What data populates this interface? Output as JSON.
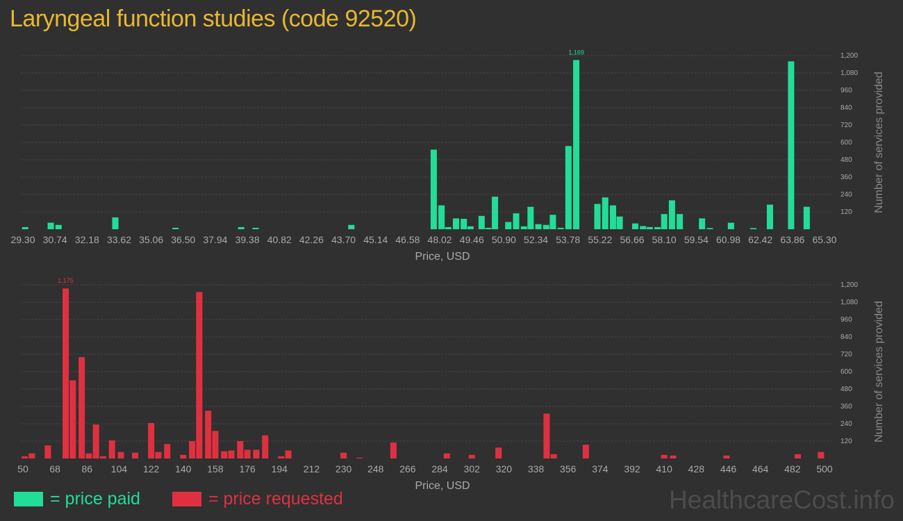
{
  "title": "Laryngeal function studies (code 92520)",
  "colors": {
    "paid": "#22dd99",
    "requested": "#e03040",
    "title": "#e8b730"
  },
  "legend": {
    "paid": "= price paid",
    "requested": "= price requested"
  },
  "watermark": "HealthcareCost.info",
  "chart_data": [
    {
      "type": "bar",
      "name": "price paid",
      "color": "#22dd99",
      "xlabel": "Price, USD",
      "ylabel": "Number of services provided",
      "xlim": [
        29.3,
        65.3
      ],
      "ylim": [
        0,
        1260
      ],
      "x_ticks": [
        "29.30",
        "30.74",
        "32.18",
        "33.62",
        "35.06",
        "36.50",
        "37.94",
        "39.38",
        "40.82",
        "42.26",
        "43.70",
        "45.14",
        "46.58",
        "48.02",
        "49.46",
        "50.90",
        "52.34",
        "53.78",
        "55.22",
        "56.66",
        "58.10",
        "59.54",
        "60.98",
        "62.42",
        "63.86",
        "65.30"
      ],
      "y_ticks": [
        {
          "value": 120,
          "label": "120"
        },
        {
          "value": 240,
          "label": "240"
        },
        {
          "value": 360,
          "label": "360"
        },
        {
          "value": 480,
          "label": "480"
        },
        {
          "value": 600,
          "label": "600"
        },
        {
          "value": 720,
          "label": "720"
        },
        {
          "value": 840,
          "label": "840"
        },
        {
          "value": 960,
          "label": "960"
        },
        {
          "value": 1080,
          "label": "1,080"
        },
        {
          "value": 1200,
          "label": "1,200"
        }
      ],
      "peak_label": "1,169",
      "x": [
        29.4,
        30.55,
        30.9,
        33.45,
        36.15,
        39.1,
        39.75,
        44.05,
        47.75,
        48.1,
        48.4,
        48.75,
        49.1,
        49.4,
        49.9,
        50.2,
        50.5,
        51.1,
        51.45,
        51.8,
        52.1,
        52.45,
        52.8,
        53.1,
        53.45,
        53.8,
        54.15,
        55.1,
        55.45,
        55.8,
        56.1,
        56.8,
        57.15,
        57.45,
        57.8,
        58.1,
        58.45,
        58.8,
        59.8,
        60.15,
        61.1,
        62.1,
        62.85,
        63.8,
        64.5,
        65.15
      ],
      "y": [
        15,
        45,
        30,
        82,
        10,
        15,
        10,
        30,
        550,
        165,
        15,
        75,
        72,
        20,
        92,
        10,
        225,
        50,
        110,
        20,
        155,
        35,
        30,
        100,
        10,
        575,
        1169,
        175,
        220,
        165,
        88,
        40,
        22,
        15,
        15,
        105,
        200,
        105,
        75,
        8,
        45,
        8,
        170,
        1160,
        155,
        0
      ]
    },
    {
      "type": "bar",
      "name": "price requested",
      "color": "#e03040",
      "xlabel": "Price, USD",
      "ylabel": "Number of services provided",
      "xlim": [
        50,
        500
      ],
      "ylim": [
        0,
        1260
      ],
      "x_ticks": [
        "50",
        "68",
        "86",
        "104",
        "122",
        "140",
        "158",
        "176",
        "194",
        "212",
        "230",
        "248",
        "266",
        "284",
        "302",
        "320",
        "338",
        "356",
        "374",
        "392",
        "410",
        "428",
        "446",
        "464",
        "482",
        "500"
      ],
      "y_ticks": [
        {
          "value": 120,
          "label": "120"
        },
        {
          "value": 240,
          "label": "240"
        },
        {
          "value": 360,
          "label": "360"
        },
        {
          "value": 480,
          "label": "480"
        },
        {
          "value": 600,
          "label": "600"
        },
        {
          "value": 720,
          "label": "720"
        },
        {
          "value": 840,
          "label": "840"
        },
        {
          "value": 960,
          "label": "960"
        },
        {
          "value": 1080,
          "label": "1,080"
        },
        {
          "value": 1200,
          "label": "1,200"
        }
      ],
      "peak_label": "1,175",
      "x": [
        51,
        55,
        64,
        74,
        78,
        83,
        87,
        91,
        95,
        100,
        105,
        113,
        122,
        126,
        131,
        140,
        145,
        149,
        154,
        158,
        163,
        167,
        172,
        176,
        181,
        186,
        195,
        199,
        230,
        239,
        258,
        288,
        302,
        317,
        344,
        348,
        366,
        410,
        415,
        445,
        485,
        498
      ],
      "y": [
        15,
        35,
        90,
        1175,
        540,
        700,
        35,
        235,
        15,
        125,
        45,
        40,
        245,
        45,
        100,
        25,
        120,
        1150,
        330,
        190,
        50,
        55,
        120,
        60,
        60,
        160,
        15,
        55,
        40,
        5,
        110,
        35,
        25,
        75,
        310,
        30,
        95,
        25,
        20,
        20,
        30,
        45
      ]
    }
  ]
}
